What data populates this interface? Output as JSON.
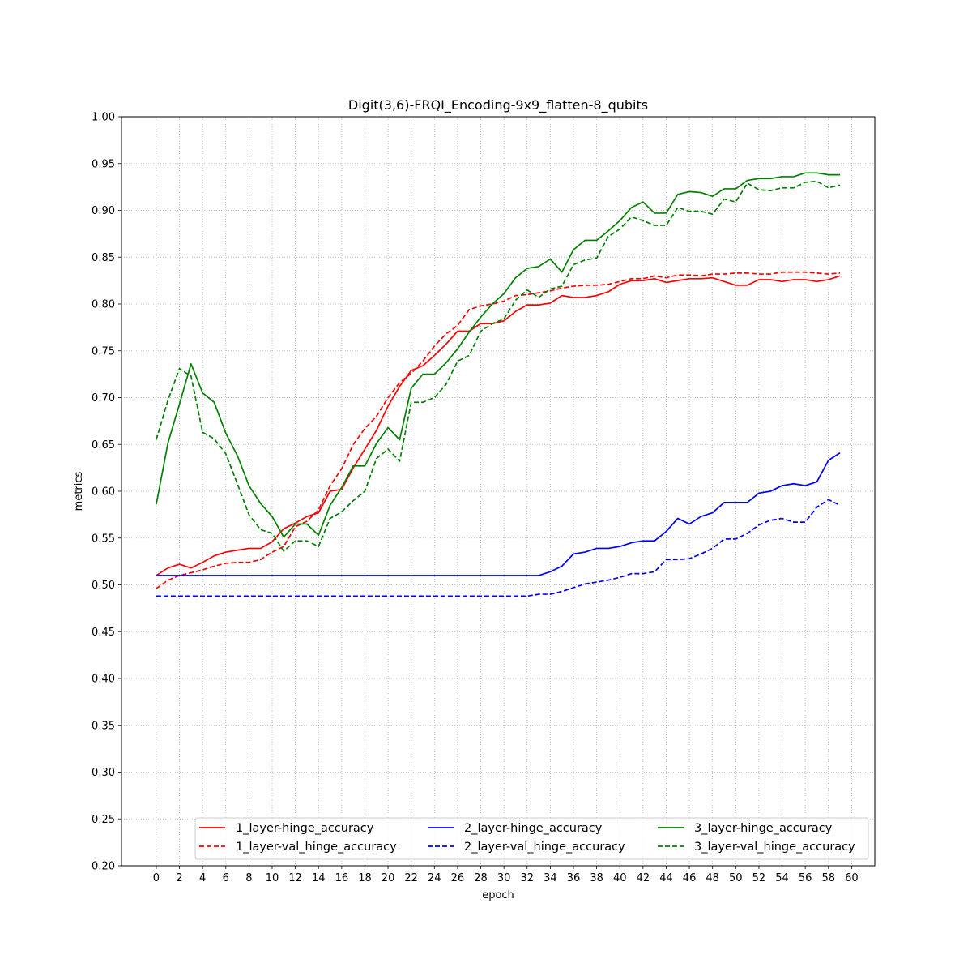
{
  "chart_data": {
    "type": "line",
    "title": "Digit(3,6)-FRQI_Encoding-9x9_flatten-8_qubits",
    "xlabel": "epoch",
    "ylabel": "metrics",
    "xlim": [
      -3,
      62
    ],
    "ylim": [
      0.2,
      1.0
    ],
    "xticks": [
      0,
      2,
      4,
      6,
      8,
      10,
      12,
      14,
      16,
      18,
      20,
      22,
      24,
      26,
      28,
      30,
      32,
      34,
      36,
      38,
      40,
      42,
      44,
      46,
      48,
      50,
      52,
      54,
      56,
      58,
      60
    ],
    "yticks": [
      0.2,
      0.25,
      0.3,
      0.35,
      0.4,
      0.45,
      0.5,
      0.55,
      0.6,
      0.65,
      0.7,
      0.75,
      0.8,
      0.85,
      0.9,
      0.95,
      1.0
    ],
    "grid": true,
    "legend_position": "lower-right",
    "x": [
      0,
      1,
      2,
      3,
      4,
      5,
      6,
      7,
      8,
      9,
      10,
      11,
      12,
      13,
      14,
      15,
      16,
      17,
      18,
      19,
      20,
      21,
      22,
      23,
      24,
      25,
      26,
      27,
      28,
      29,
      30,
      31,
      32,
      33,
      34,
      35,
      36,
      37,
      38,
      39,
      40,
      41,
      42,
      43,
      44,
      45,
      46,
      47,
      48,
      49,
      50,
      51,
      52,
      53,
      54,
      55,
      56,
      57,
      58,
      59
    ],
    "series": [
      {
        "name": "1_layer-hinge_accuracy",
        "color": "#ff0000",
        "dash": "solid",
        "values": [
          0.51,
          0.518,
          0.522,
          0.518,
          0.524,
          0.531,
          0.535,
          0.537,
          0.539,
          0.539,
          0.546,
          0.56,
          0.566,
          0.573,
          0.577,
          0.6,
          0.602,
          0.625,
          0.645,
          0.665,
          0.691,
          0.712,
          0.729,
          0.734,
          0.745,
          0.757,
          0.771,
          0.771,
          0.779,
          0.779,
          0.782,
          0.792,
          0.799,
          0.799,
          0.801,
          0.809,
          0.807,
          0.807,
          0.809,
          0.813,
          0.821,
          0.825,
          0.825,
          0.827,
          0.823,
          0.825,
          0.827,
          0.827,
          0.828,
          0.824,
          0.82,
          0.82,
          0.826,
          0.826,
          0.824,
          0.826,
          0.826,
          0.824,
          0.826,
          0.83
        ]
      },
      {
        "name": "1_layer-val_hinge_accuracy",
        "color": "#ff0000",
        "dash": "dashed",
        "values": [
          0.496,
          0.505,
          0.51,
          0.513,
          0.516,
          0.52,
          0.523,
          0.524,
          0.524,
          0.527,
          0.535,
          0.541,
          0.562,
          0.568,
          0.58,
          0.606,
          0.624,
          0.65,
          0.667,
          0.68,
          0.7,
          0.716,
          0.726,
          0.739,
          0.755,
          0.768,
          0.777,
          0.794,
          0.798,
          0.8,
          0.803,
          0.809,
          0.81,
          0.812,
          0.814,
          0.817,
          0.819,
          0.82,
          0.82,
          0.821,
          0.824,
          0.827,
          0.827,
          0.83,
          0.828,
          0.831,
          0.831,
          0.83,
          0.832,
          0.832,
          0.833,
          0.833,
          0.832,
          0.832,
          0.834,
          0.834,
          0.834,
          0.833,
          0.832,
          0.833
        ]
      },
      {
        "name": "2_layer-hinge_accuracy",
        "color": "#0000ff",
        "dash": "solid",
        "values": [
          0.51,
          0.51,
          0.51,
          0.51,
          0.51,
          0.51,
          0.51,
          0.51,
          0.51,
          0.51,
          0.51,
          0.51,
          0.51,
          0.51,
          0.51,
          0.51,
          0.51,
          0.51,
          0.51,
          0.51,
          0.51,
          0.51,
          0.51,
          0.51,
          0.51,
          0.51,
          0.51,
          0.51,
          0.51,
          0.51,
          0.51,
          0.51,
          0.51,
          0.51,
          0.514,
          0.52,
          0.533,
          0.535,
          0.539,
          0.539,
          0.541,
          0.545,
          0.547,
          0.547,
          0.557,
          0.571,
          0.565,
          0.573,
          0.577,
          0.588,
          0.588,
          0.588,
          0.598,
          0.6,
          0.606,
          0.608,
          0.606,
          0.61,
          0.633,
          0.641
        ]
      },
      {
        "name": "2_layer-val_hinge_accuracy",
        "color": "#0000ff",
        "dash": "dashed",
        "values": [
          0.488,
          0.488,
          0.488,
          0.488,
          0.488,
          0.488,
          0.488,
          0.488,
          0.488,
          0.488,
          0.488,
          0.488,
          0.488,
          0.488,
          0.488,
          0.488,
          0.488,
          0.488,
          0.488,
          0.488,
          0.488,
          0.488,
          0.488,
          0.488,
          0.488,
          0.488,
          0.488,
          0.488,
          0.488,
          0.488,
          0.488,
          0.488,
          0.488,
          0.49,
          0.49,
          0.493,
          0.497,
          0.501,
          0.503,
          0.505,
          0.508,
          0.512,
          0.512,
          0.514,
          0.527,
          0.527,
          0.528,
          0.533,
          0.539,
          0.549,
          0.549,
          0.555,
          0.564,
          0.569,
          0.571,
          0.567,
          0.567,
          0.583,
          0.591,
          0.585
        ]
      },
      {
        "name": "3_layer-hinge_accuracy",
        "color": "#008000",
        "dash": "solid",
        "values": [
          0.586,
          0.651,
          0.693,
          0.736,
          0.705,
          0.695,
          0.662,
          0.638,
          0.606,
          0.587,
          0.573,
          0.551,
          0.565,
          0.565,
          0.553,
          0.585,
          0.604,
          0.627,
          0.627,
          0.651,
          0.668,
          0.655,
          0.71,
          0.725,
          0.725,
          0.737,
          0.752,
          0.77,
          0.786,
          0.8,
          0.811,
          0.828,
          0.838,
          0.84,
          0.848,
          0.834,
          0.858,
          0.868,
          0.868,
          0.878,
          0.889,
          0.903,
          0.909,
          0.897,
          0.897,
          0.917,
          0.92,
          0.919,
          0.915,
          0.923,
          0.923,
          0.932,
          0.934,
          0.934,
          0.936,
          0.936,
          0.94,
          0.94,
          0.938,
          0.938
        ]
      },
      {
        "name": "3_layer-val_hinge_accuracy",
        "color": "#008000",
        "dash": "dashed",
        "values": [
          0.655,
          0.697,
          0.731,
          0.723,
          0.663,
          0.656,
          0.64,
          0.608,
          0.575,
          0.559,
          0.555,
          0.536,
          0.547,
          0.547,
          0.541,
          0.571,
          0.578,
          0.59,
          0.6,
          0.635,
          0.645,
          0.632,
          0.695,
          0.695,
          0.7,
          0.714,
          0.739,
          0.745,
          0.771,
          0.779,
          0.784,
          0.804,
          0.815,
          0.807,
          0.816,
          0.819,
          0.842,
          0.847,
          0.849,
          0.872,
          0.88,
          0.893,
          0.889,
          0.884,
          0.884,
          0.903,
          0.899,
          0.899,
          0.896,
          0.912,
          0.909,
          0.929,
          0.922,
          0.921,
          0.924,
          0.924,
          0.93,
          0.931,
          0.924,
          0.927
        ]
      }
    ]
  }
}
